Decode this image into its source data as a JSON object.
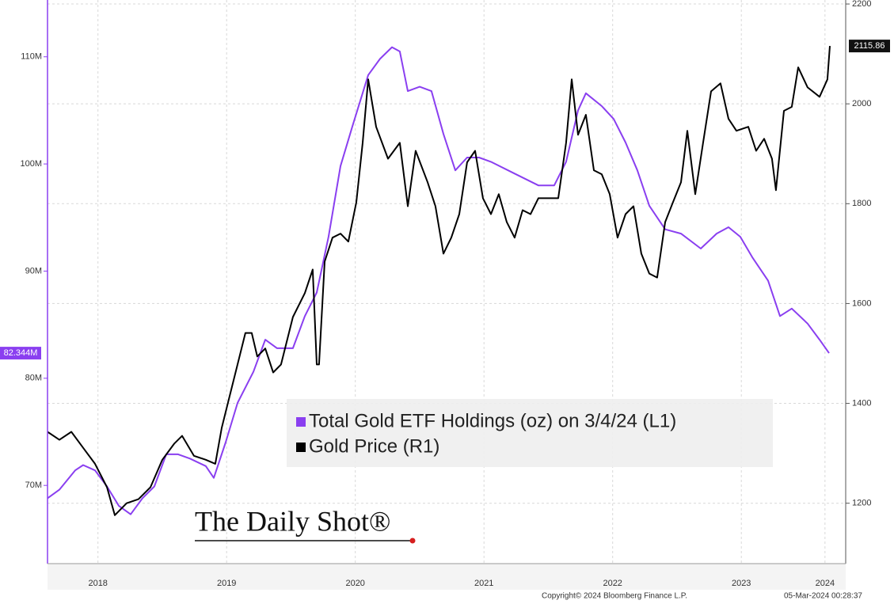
{
  "chart_data": {
    "type": "line",
    "xlim": [
      2018.108,
      2024.311
    ],
    "xticks": [
      {
        "value": 2018.5,
        "label": "2018"
      },
      {
        "value": 2019.5,
        "label": "2019"
      },
      {
        "value": 2020.5,
        "label": "2020"
      },
      {
        "value": 2021.5,
        "label": "2021"
      },
      {
        "value": 2022.5,
        "label": "2022"
      },
      {
        "value": 2023.5,
        "label": "2023"
      },
      {
        "value": 2024.15,
        "label": "2024"
      }
    ],
    "ylim": [
      62.7,
      115.3
    ],
    "yticks": [
      {
        "value": 70,
        "label": "70M"
      },
      {
        "value": 80,
        "label": "80M"
      },
      {
        "value": 90,
        "label": "90M"
      },
      {
        "value": 100,
        "label": "100M"
      },
      {
        "value": 110,
        "label": "110M"
      }
    ],
    "y2lim": [
      1079,
      2208
    ],
    "y2ticks": [
      1200,
      1400,
      1600,
      1800,
      2000,
      2200
    ],
    "grid": true,
    "series": [
      {
        "name": "Total Gold ETF Holdings (oz) on 3/4/24 (L1)",
        "color": "#8a3ff0",
        "axis": "y",
        "end_label": "82.344M",
        "x": [
          2018.108,
          2018.2,
          2018.323,
          2018.385,
          2018.477,
          2018.57,
          2018.662,
          2018.754,
          2018.846,
          2018.938,
          2019.031,
          2019.123,
          2019.215,
          2019.338,
          2019.4,
          2019.492,
          2019.585,
          2019.708,
          2019.8,
          2019.892,
          2020.015,
          2020.108,
          2020.2,
          2020.292,
          2020.385,
          2020.477,
          2020.6,
          2020.692,
          2020.785,
          2020.846,
          2020.908,
          2021.0,
          2021.092,
          2021.185,
          2021.277,
          2021.369,
          2021.462,
          2021.554,
          2021.738,
          2021.923,
          2022.046,
          2022.138,
          2022.231,
          2022.292,
          2022.415,
          2022.508,
          2022.6,
          2022.692,
          2022.785,
          2022.908,
          2023.031,
          2023.185,
          2023.308,
          2023.4,
          2023.492,
          2023.585,
          2023.708,
          2023.8,
          2023.892,
          2024.015,
          2024.108,
          2024.182
        ],
        "values": [
          68.8,
          69.6,
          71.4,
          71.9,
          71.4,
          69.9,
          68.1,
          67.3,
          68.8,
          69.9,
          72.9,
          72.9,
          72.5,
          71.8,
          70.7,
          74.0,
          77.7,
          80.6,
          83.6,
          82.8,
          82.8,
          85.8,
          88.0,
          93.2,
          99.8,
          103.5,
          108.3,
          109.8,
          110.9,
          110.5,
          106.8,
          107.2,
          106.8,
          102.8,
          99.4,
          100.6,
          100.6,
          100.2,
          99.1,
          98.0,
          98.0,
          100.2,
          105.0,
          106.6,
          105.4,
          104.2,
          102.0,
          99.4,
          96.1,
          93.9,
          93.5,
          92.1,
          93.5,
          94.1,
          93.2,
          91.3,
          89.1,
          85.8,
          86.5,
          85.1,
          83.6,
          82.344
        ]
      },
      {
        "name": "Gold Price (R1)",
        "color": "#000000",
        "axis": "y2",
        "end_label": "2115.86",
        "x": [
          2018.108,
          2018.2,
          2018.293,
          2018.385,
          2018.477,
          2018.57,
          2018.631,
          2018.723,
          2018.815,
          2018.908,
          2019.0,
          2019.092,
          2019.154,
          2019.246,
          2019.338,
          2019.412,
          2019.462,
          2019.523,
          2019.585,
          2019.646,
          2019.695,
          2019.738,
          2019.8,
          2019.862,
          2019.923,
          2020.015,
          2020.108,
          2020.169,
          2020.2,
          2020.218,
          2020.262,
          2020.323,
          2020.385,
          2020.446,
          2020.508,
          2020.557,
          2020.6,
          2020.662,
          2020.754,
          2020.846,
          2020.908,
          2020.969,
          2021.062,
          2021.123,
          2021.185,
          2021.246,
          2021.308,
          2021.369,
          2021.431,
          2021.492,
          2021.554,
          2021.615,
          2021.677,
          2021.738,
          2021.8,
          2021.862,
          2021.923,
          2022.015,
          2022.077,
          2022.138,
          2022.182,
          2022.231,
          2022.292,
          2022.354,
          2022.415,
          2022.477,
          2022.538,
          2022.6,
          2022.662,
          2022.723,
          2022.785,
          2022.846,
          2022.908,
          2022.969,
          2023.031,
          2023.08,
          2023.142,
          2023.203,
          2023.265,
          2023.338,
          2023.4,
          2023.462,
          2023.554,
          2023.615,
          2023.677,
          2023.738,
          2023.769,
          2023.831,
          2023.892,
          2023.942,
          2024.015,
          2024.108,
          2024.169,
          2024.188
        ],
        "values": [
          1343,
          1327,
          1343,
          1311,
          1279,
          1232,
          1176,
          1200,
          1208,
          1232,
          1287,
          1319,
          1335,
          1295,
          1287,
          1279,
          1351,
          1414,
          1478,
          1541,
          1541,
          1494,
          1510,
          1462,
          1478,
          1573,
          1621,
          1668,
          1478,
          1478,
          1684,
          1732,
          1740,
          1724,
          1803,
          1922,
          2049,
          1954,
          1890,
          1922,
          1795,
          1906,
          1843,
          1795,
          1700,
          1732,
          1779,
          1883,
          1906,
          1811,
          1779,
          1819,
          1763,
          1732,
          1787,
          1779,
          1811,
          1811,
          1811,
          1922,
          2049,
          1938,
          1978,
          1867,
          1859,
          1819,
          1732,
          1779,
          1795,
          1700,
          1660,
          1652,
          1763,
          1803,
          1843,
          1946,
          1819,
          1922,
          2025,
          2041,
          1970,
          1946,
          1954,
          1906,
          1930,
          1890,
          1827,
          1986,
          1994,
          2073,
          2033,
          2014,
          2049,
          2115.86
        ]
      }
    ],
    "logo": "The Daily Shot®",
    "source": "Copyright© 2024 Bloomberg Finance L.P.",
    "timestamp": "05-Mar-2024 00:28:37"
  }
}
